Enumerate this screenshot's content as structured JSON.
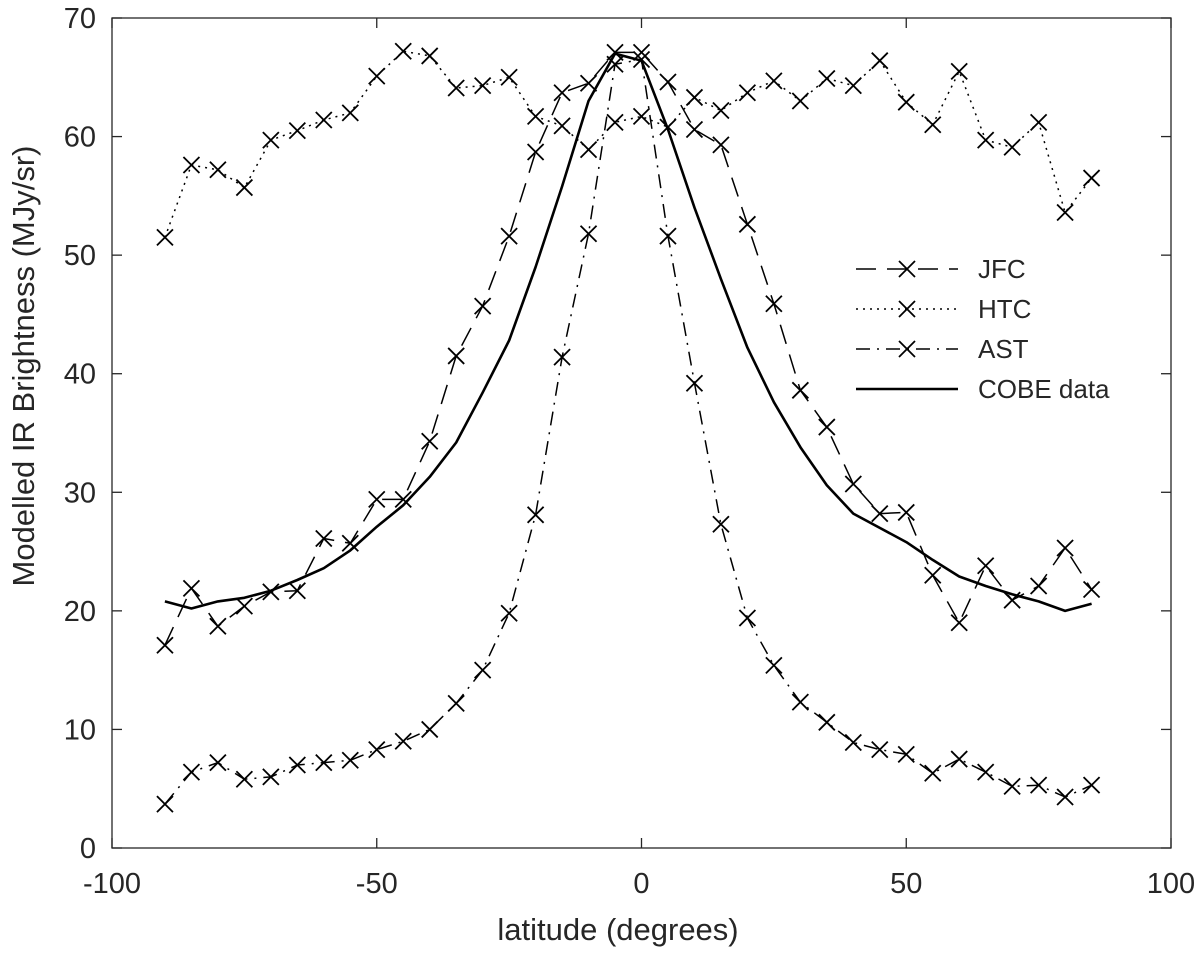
{
  "chart_data": {
    "type": "line",
    "title": "",
    "xlabel": "latitude (degrees)",
    "ylabel": "Modelled IR Brightness (MJy/sr)",
    "xlim": [
      -100,
      100
    ],
    "ylim": [
      0,
      70
    ],
    "xticks": [
      -100,
      -50,
      0,
      50,
      100
    ],
    "yticks": [
      0,
      10,
      20,
      30,
      40,
      50,
      60,
      70
    ],
    "xtick_labels": [
      "-100",
      "-50",
      "0",
      "50",
      "100"
    ],
    "ytick_labels": [
      "0",
      "10",
      "20",
      "30",
      "40",
      "50",
      "60",
      "70"
    ],
    "grid": false,
    "legend_position": "right-middle",
    "series": [
      {
        "name": "JFC",
        "style": "dashed",
        "marker": "x",
        "color": "#000000",
        "x": [
          -90,
          -85,
          -80,
          -75,
          -70,
          -65,
          -60,
          -55,
          -50,
          -45,
          -40,
          -35,
          -30,
          -25,
          -20,
          -15,
          -10,
          -5,
          0,
          5,
          10,
          15,
          20,
          25,
          30,
          35,
          40,
          45,
          50,
          55,
          60,
          65,
          70,
          75,
          80,
          85
        ],
        "y": [
          17.1,
          21.9,
          18.7,
          20.4,
          21.6,
          21.7,
          26.1,
          25.7,
          29.4,
          29.4,
          34.3,
          41.5,
          45.7,
          51.6,
          58.7,
          63.7,
          64.5,
          67.1,
          67.1,
          64.6,
          60.6,
          59.3,
          52.6,
          45.9,
          38.6,
          35.5,
          30.7,
          28.2,
          28.3,
          23.0,
          19.0,
          23.8,
          20.9,
          22.1,
          25.3,
          21.8
        ]
      },
      {
        "name": "HTC",
        "style": "dotted",
        "marker": "x",
        "color": "#000000",
        "x": [
          -90,
          -85,
          -80,
          -75,
          -70,
          -65,
          -60,
          -55,
          -50,
          -45,
          -40,
          -35,
          -30,
          -25,
          -20,
          -15,
          -10,
          -5,
          0,
          5,
          10,
          15,
          20,
          25,
          30,
          35,
          40,
          45,
          50,
          55,
          60,
          65,
          70,
          75,
          80,
          85
        ],
        "y": [
          51.5,
          57.6,
          57.2,
          55.7,
          59.7,
          60.5,
          61.4,
          62.0,
          65.1,
          67.2,
          66.8,
          64.1,
          64.3,
          65.0,
          61.7,
          60.9,
          58.9,
          61.2,
          61.7,
          60.8,
          63.3,
          62.2,
          63.7,
          64.7,
          63.0,
          64.9,
          64.3,
          66.4,
          62.9,
          61.0,
          65.5,
          59.7,
          59.1,
          61.2,
          53.6,
          56.5
        ]
      },
      {
        "name": "AST",
        "style": "dashdot",
        "marker": "x",
        "color": "#000000",
        "x": [
          -90,
          -85,
          -80,
          -75,
          -70,
          -65,
          -60,
          -55,
          -50,
          -45,
          -40,
          -35,
          -30,
          -25,
          -20,
          -15,
          -10,
          -5,
          0,
          5,
          10,
          15,
          20,
          25,
          30,
          35,
          40,
          45,
          50,
          55,
          60,
          65,
          70,
          75,
          80,
          85
        ],
        "y": [
          3.7,
          6.4,
          7.2,
          5.8,
          6.0,
          7.0,
          7.2,
          7.4,
          8.3,
          9.0,
          10.0,
          12.2,
          15.0,
          19.8,
          28.1,
          41.4,
          51.8,
          66.1,
          66.5,
          51.6,
          39.2,
          27.3,
          19.4,
          15.4,
          12.3,
          10.6,
          8.9,
          8.3,
          7.9,
          6.3,
          7.5,
          6.4,
          5.2,
          5.3,
          4.3,
          5.3
        ]
      },
      {
        "name": "COBE data",
        "style": "solid",
        "marker": "none",
        "color": "#000000",
        "x": [
          -90,
          -85,
          -80,
          -75,
          -70,
          -65,
          -60,
          -55,
          -50,
          -45,
          -40,
          -35,
          -30,
          -25,
          -20,
          -15,
          -10,
          -5,
          0,
          5,
          10,
          15,
          20,
          25,
          30,
          35,
          40,
          45,
          50,
          55,
          60,
          65,
          70,
          75,
          80,
          85
        ],
        "y": [
          20.8,
          20.2,
          20.8,
          21.1,
          21.7,
          22.6,
          23.6,
          25.1,
          27.1,
          28.9,
          31.3,
          34.2,
          38.4,
          42.8,
          49.0,
          55.8,
          63.0,
          67.0,
          66.4,
          60.6,
          54.0,
          48.0,
          42.2,
          37.6,
          33.8,
          30.6,
          28.2,
          27.0,
          25.8,
          24.3,
          22.9,
          22.1,
          21.4,
          20.8,
          20.0,
          20.6
        ]
      }
    ]
  }
}
